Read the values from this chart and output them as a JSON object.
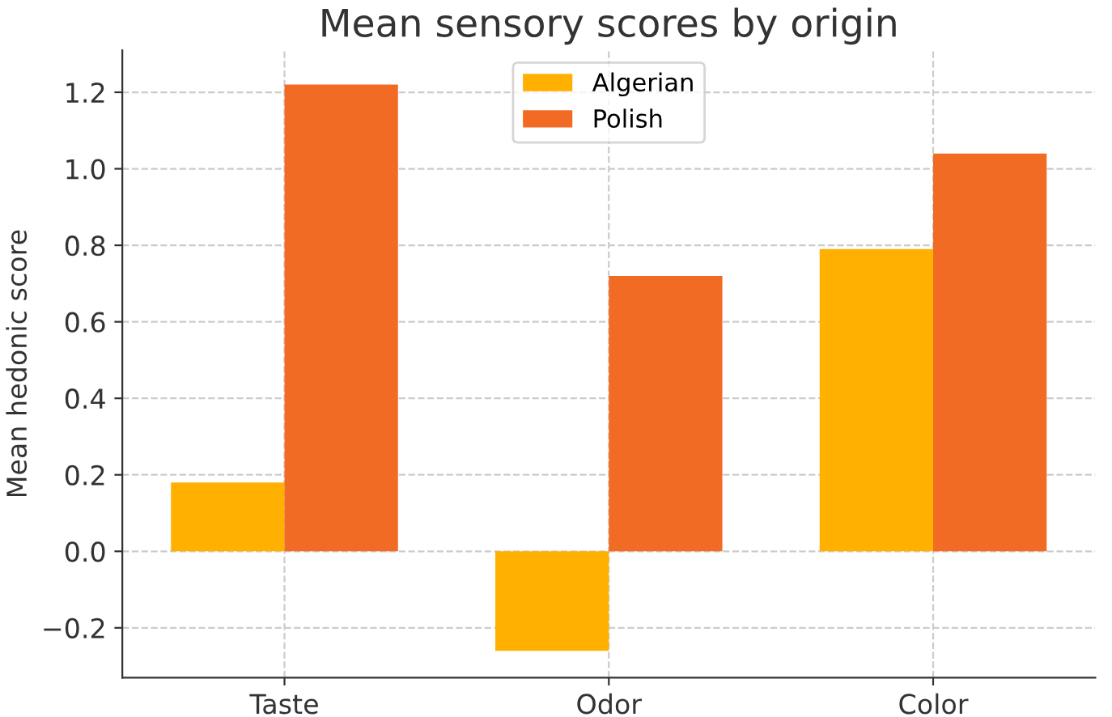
{
  "chart_data": {
    "type": "bar",
    "title": "Mean sensory scores by origin",
    "ylabel": "Mean hedonic score",
    "categories": [
      "Taste",
      "Odor",
      "Color"
    ],
    "series": [
      {
        "name": "Algerian",
        "color": "#ffb000",
        "values": [
          0.18,
          -0.26,
          0.79
        ]
      },
      {
        "name": "Polish",
        "color": "#f26b24",
        "values": [
          1.22,
          0.72,
          1.04
        ]
      }
    ],
    "ylim": [
      -0.33,
      1.31
    ],
    "yticks": [
      {
        "value": -0.2,
        "label": "−0.2"
      },
      {
        "value": 0,
        "label": "0.0"
      },
      0.2,
      0.4,
      0.6,
      0.8,
      {
        "value": 1,
        "label": "1.0"
      },
      1.2
    ],
    "grid": true,
    "legend": "top"
  }
}
